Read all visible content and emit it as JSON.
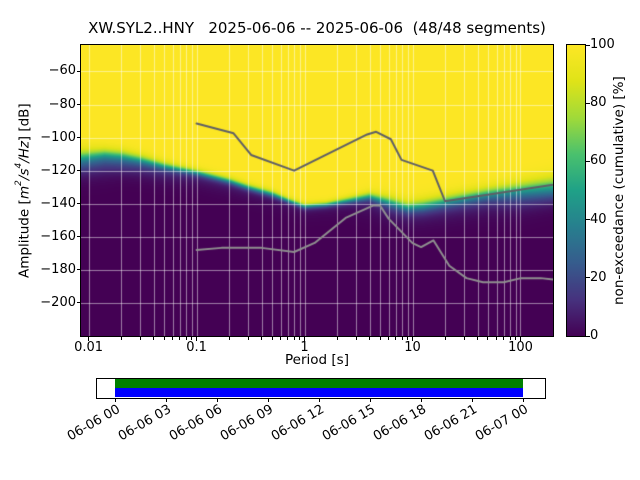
{
  "ylabel_parts": {
    "prefix": "Amplitude [",
    "m": "m",
    "sup2": "2",
    "s": "/s",
    "sup4": "4",
    "hz": "/Hz",
    "suffix": "] [dB]"
  },
  "chart_data": {
    "type": "heatmap",
    "title": "XW.SYL2..HNY   2025-06-06 -- 2025-06-06  (48/48 segments)",
    "station": "XW.SYL2..HNY",
    "date_range": "2025-06-06 -- 2025-06-06",
    "segments": "48/48",
    "xlabel": "Period [s]",
    "ylabel": "Amplitude [m^2/s^4/Hz] [dB]",
    "colorbar_label": "non-exceedance (cumulative) [%]",
    "x_scale": "log",
    "xlim": [
      0.0085,
      200
    ],
    "ylim": [
      -220,
      -44
    ],
    "x_ticks": [
      0.01,
      0.1,
      1,
      10,
      100
    ],
    "x_tick_labels": [
      "0.01",
      "0.1",
      "1",
      "10",
      "100"
    ],
    "y_ticks": [
      -200,
      -180,
      -160,
      -140,
      -120,
      -100,
      -80,
      -60
    ],
    "y_tick_labels": [
      "−200",
      "−180",
      "−160",
      "−140",
      "−120",
      "−100",
      "−80",
      "−60"
    ],
    "colorbar_ticks": [
      0,
      20,
      40,
      60,
      80,
      100
    ],
    "colormap": "viridis",
    "viridis_stops": [
      [
        0.0,
        "#440154"
      ],
      [
        0.125,
        "#46327e"
      ],
      [
        0.25,
        "#365c8d"
      ],
      [
        0.375,
        "#277f8e"
      ],
      [
        0.5,
        "#1fa187"
      ],
      [
        0.625,
        "#4ac16d"
      ],
      [
        0.75,
        "#a0da39"
      ],
      [
        0.875,
        "#dfe318"
      ],
      [
        1.0,
        "#fde725"
      ]
    ],
    "grid_color": "rgba(255,255,255,0.55)",
    "distribution": {
      "description": "Per-period cumulative non-exceedance model: main mode median/spread plus low-amplitude tail",
      "columns": [
        "log10_period_s",
        "median_db",
        "spread_db",
        "tail_weight",
        "tail_offset_db",
        "tail_spread_db"
      ],
      "rows": [
        [
          -2.07,
          -111.0,
          2.5,
          0.3,
          8,
          3.5
        ],
        [
          -1.85,
          -109.5,
          2.0,
          0.3,
          8,
          3.5
        ],
        [
          -1.7,
          -110.5,
          2.0,
          0.25,
          8,
          3.0
        ],
        [
          -1.52,
          -113.0,
          1.8,
          0.2,
          7,
          3.0
        ],
        [
          -1.3,
          -117.0,
          1.5,
          0.15,
          6,
          3.0
        ],
        [
          -1.0,
          -121.0,
          1.2,
          0.1,
          5,
          3.0
        ],
        [
          -0.7,
          -126.0,
          1.2,
          0.08,
          5,
          3.0
        ],
        [
          -0.52,
          -130.0,
          1.2,
          0.06,
          5,
          3.0
        ],
        [
          -0.3,
          -134.0,
          1.2,
          0.05,
          5,
          3.0
        ],
        [
          -0.15,
          -138.0,
          1.0,
          0.05,
          4,
          3.0
        ],
        [
          0.0,
          -141.5,
          1.0,
          0.05,
          4,
          3.0
        ],
        [
          0.2,
          -140.5,
          1.0,
          0.05,
          4,
          3.0
        ],
        [
          0.4,
          -138.0,
          1.2,
          0.06,
          5,
          3.0
        ],
        [
          0.6,
          -135.5,
          1.5,
          0.1,
          6,
          4.0
        ],
        [
          0.8,
          -139.0,
          2.0,
          0.15,
          6,
          4.0
        ],
        [
          0.95,
          -142.0,
          2.0,
          0.15,
          5,
          4.0
        ],
        [
          1.1,
          -141.0,
          2.2,
          0.15,
          5,
          4.0
        ],
        [
          1.3,
          -138.5,
          2.2,
          0.15,
          6,
          4.0
        ],
        [
          1.5,
          -136.0,
          2.2,
          0.18,
          6,
          4.0
        ],
        [
          1.7,
          -133.5,
          2.2,
          0.22,
          6,
          4.0
        ],
        [
          2.0,
          -130.5,
          2.5,
          0.35,
          7,
          4.0
        ],
        [
          2.3,
          -127.5,
          3.0,
          0.45,
          7,
          3.5
        ]
      ]
    },
    "noise_models": {
      "nhnm_color": "#5f5f66",
      "nlnm_color": "#8f8f8f",
      "nhnm": [
        [
          0.1,
          -91.5
        ],
        [
          0.22,
          -97.4
        ],
        [
          0.32,
          -110.5
        ],
        [
          0.8,
          -120.0
        ],
        [
          3.8,
          -98.1
        ],
        [
          4.6,
          -96.5
        ],
        [
          6.3,
          -101.0
        ],
        [
          7.9,
          -113.5
        ],
        [
          15.4,
          -120.0
        ],
        [
          20.0,
          -138.5
        ],
        [
          354.8,
          -126.0
        ]
      ],
      "nlnm": [
        [
          0.1,
          -168.0
        ],
        [
          0.17,
          -166.7
        ],
        [
          0.4,
          -166.7
        ],
        [
          0.8,
          -169.2
        ],
        [
          1.24,
          -163.7
        ],
        [
          2.4,
          -148.6
        ],
        [
          4.3,
          -141.1
        ],
        [
          5.0,
          -141.1
        ],
        [
          6.0,
          -149.0
        ],
        [
          10.0,
          -163.8
        ],
        [
          12.0,
          -166.2
        ],
        [
          15.6,
          -162.1
        ],
        [
          21.9,
          -177.5
        ],
        [
          31.6,
          -185.0
        ],
        [
          45.0,
          -187.5
        ],
        [
          70.0,
          -187.5
        ],
        [
          101.0,
          -185.0
        ],
        [
          154.0,
          -185.0
        ],
        [
          328.0,
          -187.5
        ]
      ]
    },
    "timeline": {
      "tick_labels": [
        "06-06 00",
        "06-06 03",
        "06-06 06",
        "06-06 09",
        "06-06 12",
        "06-06 15",
        "06-06 18",
        "06-06 21",
        "06-07 00"
      ],
      "used_color": "#008000",
      "data_color": "#0000ff"
    }
  }
}
